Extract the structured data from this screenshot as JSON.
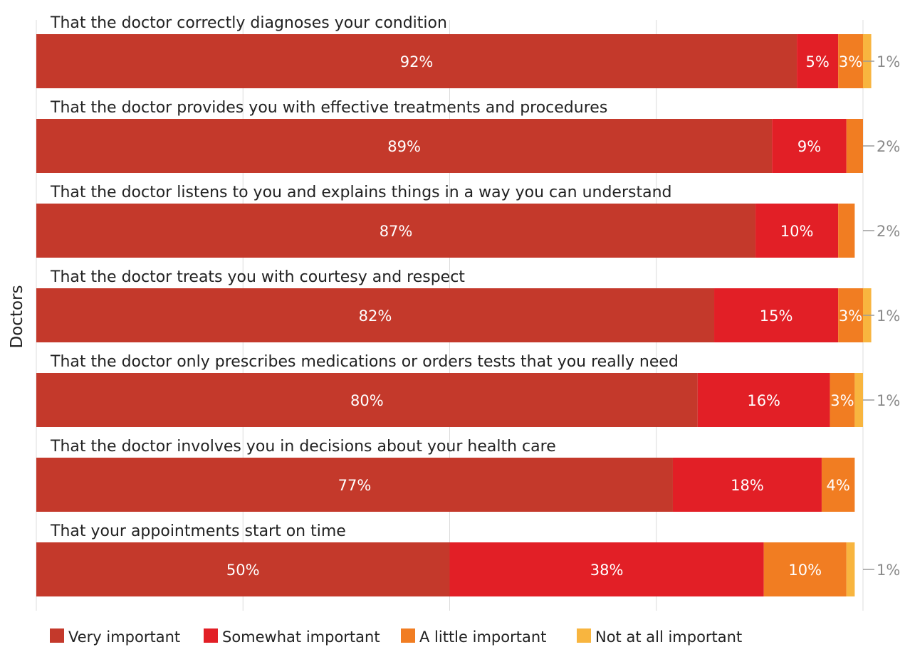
{
  "chart_data": {
    "type": "bar",
    "orientation": "horizontal",
    "stacked": true,
    "ylabel": "Doctors",
    "xlim": [
      0,
      100
    ],
    "grid": true,
    "legend_position": "bottom-left",
    "categories": [
      "That the doctor correctly diagnoses your condition",
      "That the doctor provides you with effective treatments and procedures",
      "That the doctor listens to you and explains things in a way you can understand",
      "That the doctor treats you with courtesy and respect",
      "That the doctor only prescribes medications or orders tests that you really need",
      "That the doctor involves you in decisions about your health care",
      "That your appointments start on time"
    ],
    "series": [
      {
        "name": "Very important",
        "color": "#c4392b",
        "values": [
          92,
          89,
          87,
          82,
          80,
          77,
          50
        ],
        "labels": [
          "92%",
          "89%",
          "87%",
          "82%",
          "80%",
          "77%",
          "50%"
        ]
      },
      {
        "name": "Somewhat important",
        "color": "#e21f26",
        "values": [
          5,
          9,
          10,
          15,
          16,
          18,
          38
        ],
        "labels": [
          "5%",
          "9%",
          "10%",
          "15%",
          "16%",
          "18%",
          "38%"
        ]
      },
      {
        "name": "A little important",
        "color": "#f17d22",
        "values": [
          3,
          2,
          2,
          3,
          3,
          4,
          10
        ],
        "labels": [
          "3%",
          "2%",
          "2%",
          "3%",
          "3%",
          "4%",
          "10%"
        ]
      },
      {
        "name": "Not at all important",
        "color": "#f8b53f",
        "values": [
          1,
          0,
          0,
          1,
          1,
          0,
          1
        ],
        "labels": [
          "1%",
          "",
          "",
          "1%",
          "1%",
          "",
          "1%"
        ]
      }
    ],
    "outside_labels": [
      "1%",
      "2%",
      "2%",
      "1%",
      "1%",
      "",
      "1%"
    ]
  }
}
